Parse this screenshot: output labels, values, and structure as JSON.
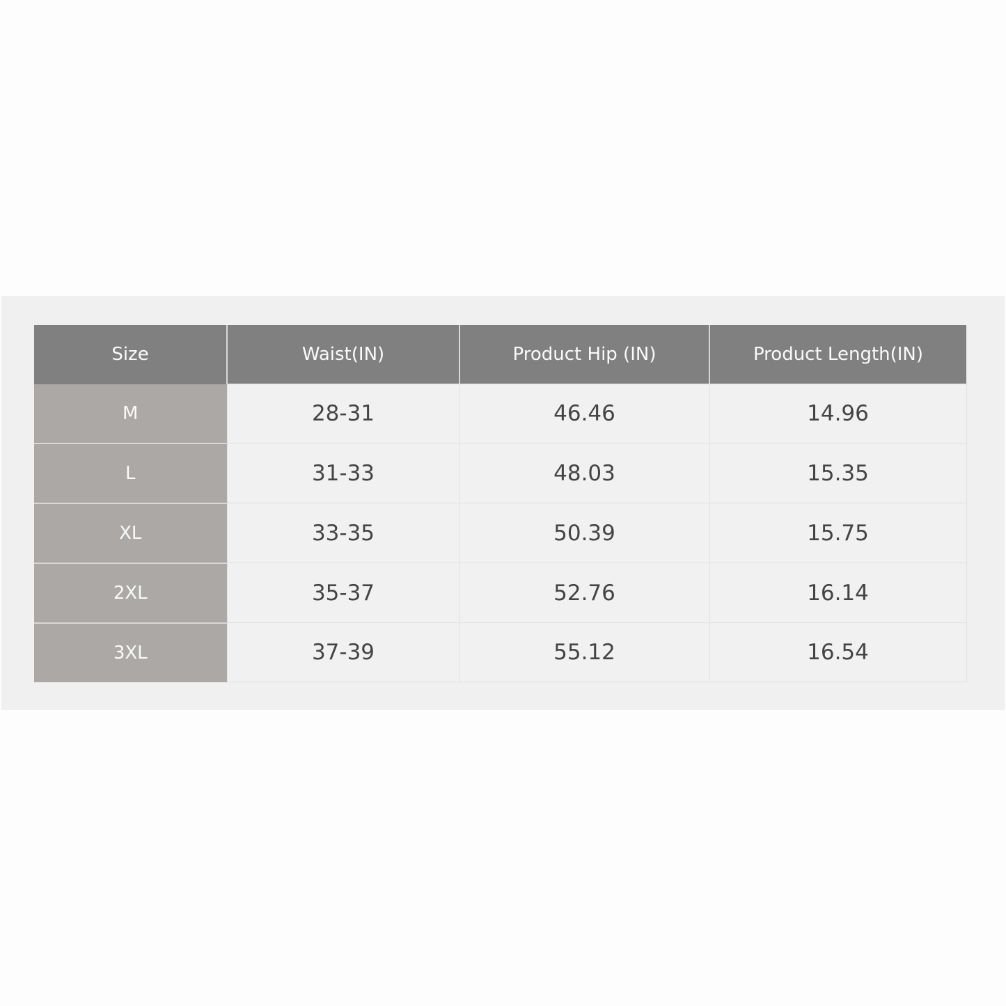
{
  "table": {
    "headers": [
      "Size",
      "Waist(IN)",
      "Product Hip (IN)",
      "Product Length(IN)"
    ],
    "rows": [
      [
        "M",
        "28-31",
        "46.46",
        "14.96"
      ],
      [
        "L",
        "31-33",
        "48.03",
        "15.35"
      ],
      [
        "XL",
        "33-35",
        "50.39",
        "15.75"
      ],
      [
        "2XL",
        "35-37",
        "52.76",
        "16.14"
      ],
      [
        "3XL",
        "37-39",
        "55.12",
        "16.54"
      ]
    ]
  },
  "colors": {
    "header_bg": "#808080",
    "size_col_bg": "#aba8a6",
    "cell_bg": "#f1f1f1",
    "panel_bg": "#f0f0f0"
  }
}
